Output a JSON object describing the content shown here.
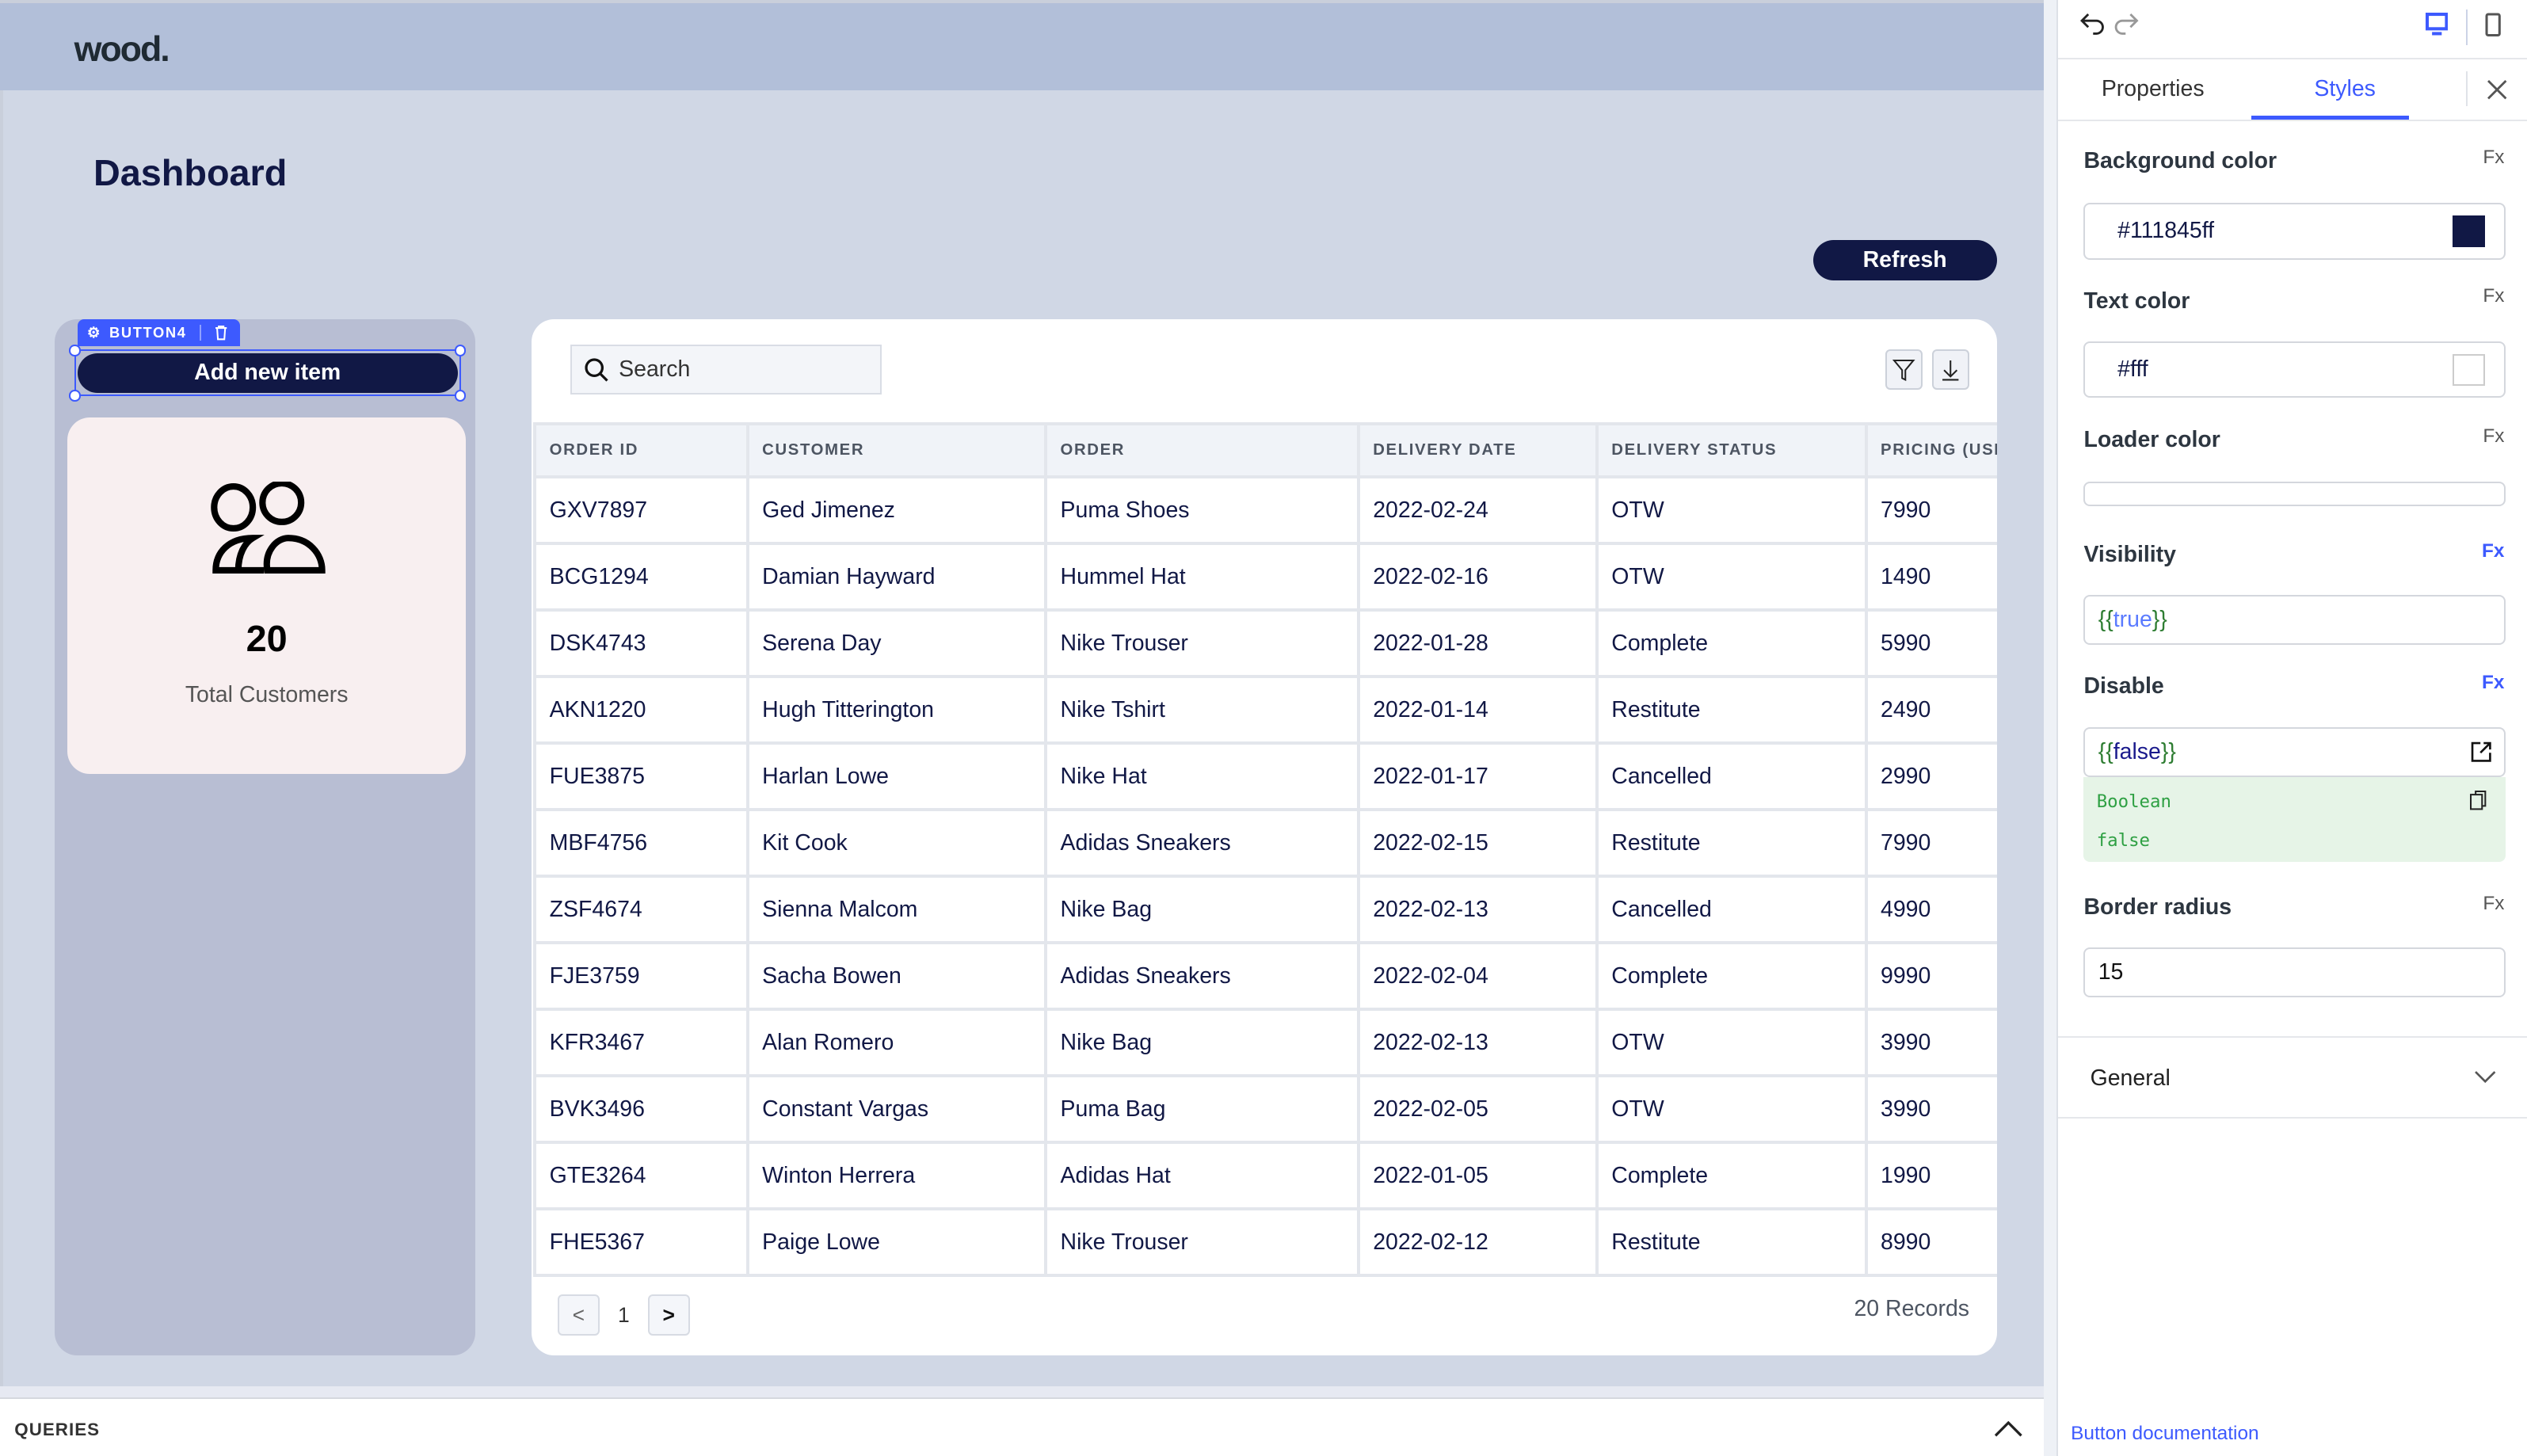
{
  "app": {
    "logo": "wood.",
    "title": "Dashboard",
    "refresh_label": "Refresh"
  },
  "widget": {
    "tag": "BUTTON4",
    "button_label": "Add new item"
  },
  "stat_card": {
    "value": "20",
    "label": "Total Customers",
    "icon": "users-icon"
  },
  "table": {
    "search_placeholder": "Search",
    "columns": [
      "ORDER ID",
      "CUSTOMER",
      "ORDER",
      "DELIVERY DATE",
      "DELIVERY STATUS",
      "PRICING (USD"
    ],
    "rows": [
      [
        "GXV7897",
        "Ged Jimenez",
        "Puma Shoes",
        "2022-02-24",
        "OTW",
        "7990"
      ],
      [
        "BCG1294",
        "Damian Hayward",
        "Hummel Hat",
        "2022-02-16",
        "OTW",
        "1490"
      ],
      [
        "DSK4743",
        "Serena Day",
        "Nike Trouser",
        "2022-01-28",
        "Complete",
        "5990"
      ],
      [
        "AKN1220",
        "Hugh Titterington",
        "Nike Tshirt",
        "2022-01-14",
        "Restitute",
        "2490"
      ],
      [
        "FUE3875",
        "Harlan Lowe",
        "Nike Hat",
        "2022-01-17",
        "Cancelled",
        "2990"
      ],
      [
        "MBF4756",
        "Kit Cook",
        "Adidas Sneakers",
        "2022-02-15",
        "Restitute",
        "7990"
      ],
      [
        "ZSF4674",
        "Sienna Malcom",
        "Nike Bag",
        "2022-02-13",
        "Cancelled",
        "4990"
      ],
      [
        "FJE3759",
        "Sacha Bowen",
        "Adidas Sneakers",
        "2022-02-04",
        "Complete",
        "9990"
      ],
      [
        "KFR3467",
        "Alan Romero",
        "Nike Bag",
        "2022-02-13",
        "OTW",
        "3990"
      ],
      [
        "BVK3496",
        "Constant Vargas",
        "Puma Bag",
        "2022-02-05",
        "OTW",
        "3990"
      ],
      [
        "GTE3264",
        "Winton Herrera",
        "Adidas Hat",
        "2022-01-05",
        "Complete",
        "1990"
      ],
      [
        "FHE5367",
        "Paige Lowe",
        "Nike Trouser",
        "2022-02-12",
        "Restitute",
        "8990"
      ]
    ],
    "pagination": {
      "prev": "<",
      "page": "1",
      "next": ">"
    },
    "records": "20 Records"
  },
  "queries": {
    "label": "QUERIES"
  },
  "panel": {
    "tabs": [
      "Properties",
      "Styles"
    ],
    "active_tab": "Styles",
    "fx": "Fx",
    "background_color": {
      "label": "Background color",
      "value": "#111845ff",
      "swatch": "#111845"
    },
    "text_color": {
      "label": "Text color",
      "value": "#fff",
      "swatch": "#ffffff"
    },
    "loader_color": {
      "label": "Loader color"
    },
    "visibility": {
      "label": "Visibility",
      "value": "{{true}}"
    },
    "disable": {
      "label": "Disable",
      "value": "{{false}}",
      "preview_type": "Boolean",
      "preview_value": "false"
    },
    "border_radius": {
      "label": "Border radius",
      "value": "15"
    },
    "general": "General",
    "doc_link": "Button documentation"
  },
  "colors": {
    "accent": "#3d5afe",
    "primary": "#111845",
    "header": "#b2bfd9",
    "canvas": "#d0d7e5"
  }
}
